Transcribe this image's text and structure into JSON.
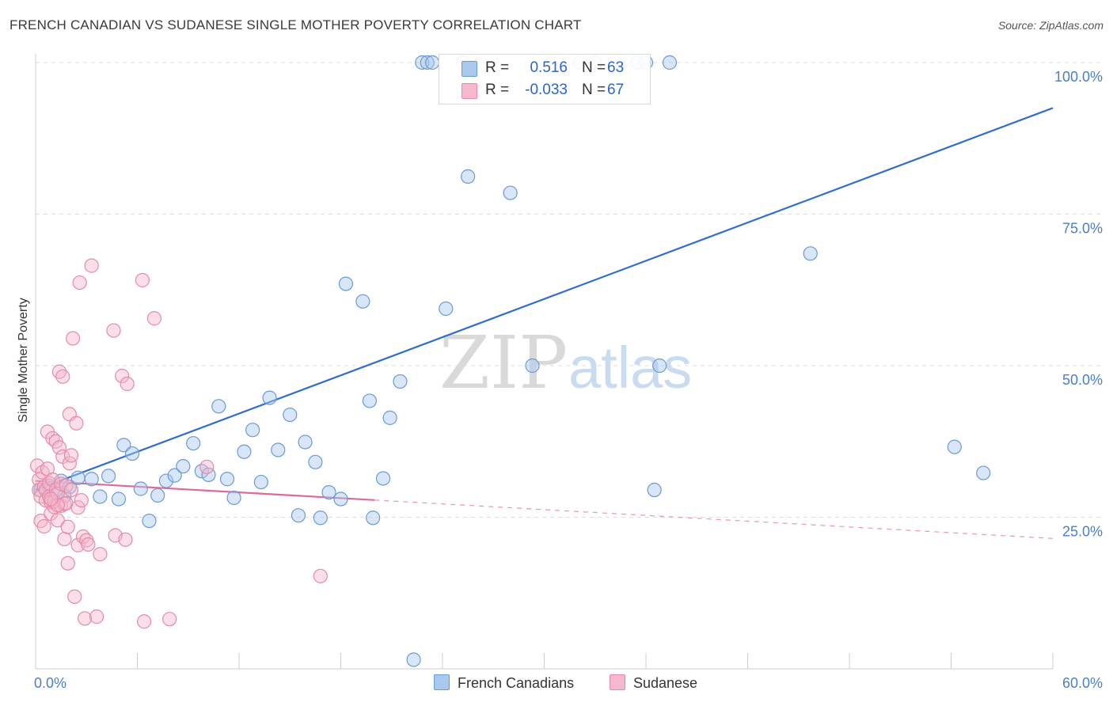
{
  "title": "FRENCH CANADIAN VS SUDANESE SINGLE MOTHER POVERTY CORRELATION CHART",
  "source": "Source: ZipAtlas.com",
  "watermark": {
    "zip": "ZIP",
    "atlas": "atlas"
  },
  "colors": {
    "blue_fill": "#a9c8ee",
    "blue_stroke": "#6a9ad8",
    "blue_line": "#2f6fcb",
    "pink_fill": "#f5b8cc",
    "pink_stroke": "#e68aa8",
    "pink_line": "#e0689a",
    "grid": "#dcdcdc",
    "tick_text": "#4a7fc8"
  },
  "legend": {
    "rows": [
      {
        "r_label": "R =",
        "r_value": "0.516",
        "n_label": "N =",
        "n_value": "63",
        "series": "blue"
      },
      {
        "r_label": "R =",
        "r_value": "-0.033",
        "n_label": "N =",
        "n_value": "67",
        "series": "pink"
      }
    ]
  },
  "bottom_legend": [
    "French Canadians",
    "Sudanese"
  ],
  "chart_data": {
    "type": "scatter",
    "title": "FRENCH CANADIAN VS SUDANESE SINGLE MOTHER POVERTY CORRELATION CHART",
    "xlabel": "",
    "ylabel": "Single Mother Poverty",
    "xlim": [
      0,
      60
    ],
    "ylim": [
      0,
      100
    ],
    "x_tick_labels": [
      "0.0%",
      "60.0%"
    ],
    "y_tick_labels": [
      "25.0%",
      "50.0%",
      "75.0%",
      "100.0%"
    ],
    "y_ticks": [
      25,
      50,
      75,
      100
    ],
    "grid": true,
    "legend_placement": "top-center",
    "series": [
      {
        "name": "French Canadians",
        "color": "blue",
        "r": 0.516,
        "n": 63,
        "trend": {
          "x": [
            0,
            60
          ],
          "y": [
            29.5,
            92.5
          ],
          "solid_until": 60
        },
        "points": [
          [
            0.3,
            29.5
          ],
          [
            0.8,
            30.2
          ],
          [
            1.2,
            28.8
          ],
          [
            1.5,
            31.0
          ],
          [
            2.0,
            30.0
          ],
          [
            2.5,
            31.5
          ],
          [
            3.3,
            31.3
          ],
          [
            3.8,
            28.4
          ],
          [
            4.3,
            31.8
          ],
          [
            4.9,
            28.0
          ],
          [
            5.2,
            36.9
          ],
          [
            5.7,
            35.5
          ],
          [
            6.2,
            29.7
          ],
          [
            6.7,
            24.4
          ],
          [
            7.2,
            28.6
          ],
          [
            7.7,
            31.0
          ],
          [
            8.2,
            31.9
          ],
          [
            8.7,
            33.4
          ],
          [
            9.3,
            37.2
          ],
          [
            9.8,
            32.6
          ],
          [
            10.2,
            32.0
          ],
          [
            10.8,
            43.3
          ],
          [
            11.3,
            31.3
          ],
          [
            11.7,
            28.2
          ],
          [
            12.3,
            35.8
          ],
          [
            12.8,
            39.4
          ],
          [
            13.3,
            30.8
          ],
          [
            13.8,
            44.7
          ],
          [
            14.3,
            36.1
          ],
          [
            15.0,
            41.9
          ],
          [
            15.5,
            25.3
          ],
          [
            15.9,
            37.4
          ],
          [
            16.5,
            34.1
          ],
          [
            16.8,
            24.9
          ],
          [
            17.3,
            29.1
          ],
          [
            18.0,
            28.0
          ],
          [
            18.3,
            63.5
          ],
          [
            19.3,
            60.6
          ],
          [
            19.7,
            44.2
          ],
          [
            19.9,
            24.9
          ],
          [
            20.5,
            31.4
          ],
          [
            20.9,
            41.4
          ],
          [
            21.5,
            47.4
          ],
          [
            22.3,
            1.5
          ],
          [
            22.8,
            100.0
          ],
          [
            23.1,
            100.0
          ],
          [
            23.4,
            100.0
          ],
          [
            24.2,
            59.4
          ],
          [
            25.2,
            100.0
          ],
          [
            25.5,
            81.2
          ],
          [
            28.0,
            78.5
          ],
          [
            29.3,
            50.0
          ],
          [
            32.1,
            100.0
          ],
          [
            33.0,
            100.0
          ],
          [
            35.5,
            100.0
          ],
          [
            36.0,
            100.0
          ],
          [
            36.5,
            29.5
          ],
          [
            36.8,
            50.0
          ],
          [
            37.4,
            100.0
          ],
          [
            45.7,
            68.5
          ],
          [
            54.2,
            36.6
          ],
          [
            55.9,
            32.3
          ],
          [
            1.7,
            28.5
          ]
        ]
      },
      {
        "name": "Sudanese",
        "color": "pink",
        "r": -0.033,
        "n": 67,
        "trend": {
          "x": [
            0,
            60
          ],
          "y": [
            31.0,
            21.5
          ],
          "solid_until": 20
        },
        "points": [
          [
            0.1,
            33.5
          ],
          [
            0.2,
            31.2
          ],
          [
            0.2,
            29.5
          ],
          [
            0.3,
            28.4
          ],
          [
            0.3,
            24.4
          ],
          [
            0.4,
            32.4
          ],
          [
            0.5,
            30.0
          ],
          [
            0.5,
            23.5
          ],
          [
            0.6,
            29.5
          ],
          [
            0.6,
            27.8
          ],
          [
            0.7,
            39.1
          ],
          [
            0.7,
            33.0
          ],
          [
            0.8,
            30.6
          ],
          [
            0.8,
            28.4
          ],
          [
            0.9,
            25.6
          ],
          [
            0.9,
            27.5
          ],
          [
            1.0,
            38.0
          ],
          [
            1.0,
            31.2
          ],
          [
            1.1,
            26.7
          ],
          [
            1.1,
            27.6
          ],
          [
            1.2,
            37.5
          ],
          [
            1.2,
            29.5
          ],
          [
            1.3,
            28.9
          ],
          [
            1.3,
            24.5
          ],
          [
            1.4,
            49.0
          ],
          [
            1.4,
            36.5
          ],
          [
            1.5,
            30.5
          ],
          [
            1.5,
            26.9
          ],
          [
            1.6,
            48.2
          ],
          [
            1.6,
            35.0
          ],
          [
            1.7,
            21.4
          ],
          [
            1.7,
            27.2
          ],
          [
            1.8,
            30.2
          ],
          [
            1.8,
            27.3
          ],
          [
            1.9,
            23.4
          ],
          [
            1.9,
            17.4
          ],
          [
            2.0,
            33.9
          ],
          [
            2.0,
            42.0
          ],
          [
            2.1,
            29.5
          ],
          [
            2.1,
            35.2
          ],
          [
            2.2,
            54.5
          ],
          [
            2.3,
            11.9
          ],
          [
            2.4,
            40.5
          ],
          [
            2.5,
            26.6
          ],
          [
            2.5,
            20.4
          ],
          [
            2.6,
            63.7
          ],
          [
            2.7,
            27.8
          ],
          [
            2.8,
            21.8
          ],
          [
            2.9,
            8.3
          ],
          [
            3.0,
            21.2
          ],
          [
            3.1,
            20.5
          ],
          [
            3.3,
            66.5
          ],
          [
            3.6,
            8.6
          ],
          [
            3.8,
            18.9
          ],
          [
            4.6,
            55.8
          ],
          [
            4.7,
            22.0
          ],
          [
            5.1,
            48.3
          ],
          [
            5.3,
            21.3
          ],
          [
            5.4,
            47.0
          ],
          [
            6.3,
            64.1
          ],
          [
            6.4,
            7.8
          ],
          [
            7.0,
            57.8
          ],
          [
            7.9,
            8.2
          ],
          [
            10.1,
            33.3
          ],
          [
            16.8,
            15.3
          ],
          [
            1.3,
            27.0
          ],
          [
            0.9,
            28.0
          ]
        ]
      }
    ]
  }
}
